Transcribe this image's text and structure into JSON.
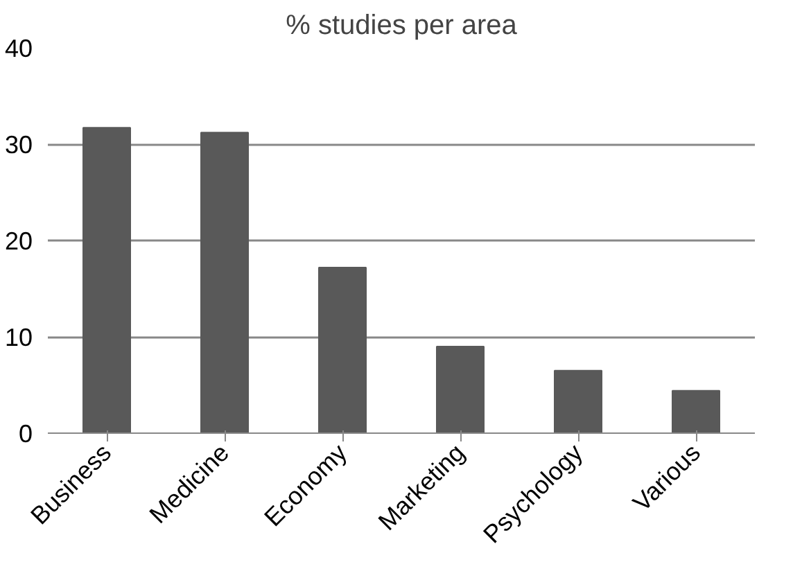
{
  "chart_data": {
    "type": "bar",
    "title": "% studies per area",
    "categories": [
      "Business",
      "Medicine",
      "Economy",
      "Marketing",
      "Psychology",
      "Various"
    ],
    "values": [
      31.7,
      31.2,
      17.2,
      9.0,
      6.5,
      4.4
    ],
    "color": "#595959",
    "ylim": [
      0,
      40
    ],
    "yticks": [
      0,
      10,
      20,
      30,
      40
    ],
    "grid": "y"
  }
}
